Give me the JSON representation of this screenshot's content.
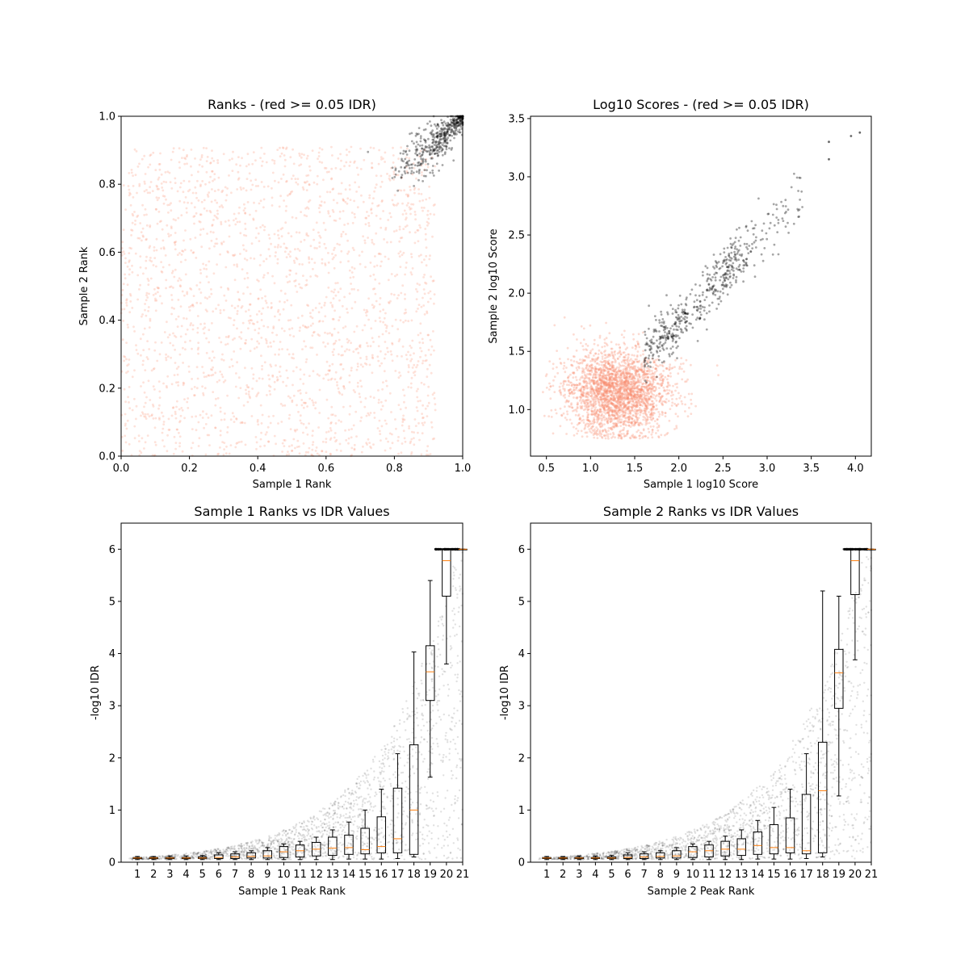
{
  "colors": {
    "background": "#ffffff",
    "low_reproducibility": "#fa8c6c",
    "high_reproducibility": "#000000",
    "box": "#000000",
    "median": "#ff7f0e"
  },
  "chart_data": [
    {
      "id": "ranks",
      "type": "scatter",
      "title": "Ranks - (red >= 0.05 IDR)",
      "xlabel": "Sample 1 Rank",
      "ylabel": "Sample 2 Rank",
      "xlim": [
        0,
        1
      ],
      "ylim": [
        0,
        1
      ],
      "xticks": [
        0.0,
        0.2,
        0.4,
        0.6,
        0.8,
        1.0
      ],
      "yticks": [
        0.0,
        0.2,
        0.4,
        0.6,
        0.8,
        1.0
      ],
      "xtick_labels": [
        "0.0",
        "0.2",
        "0.4",
        "0.6",
        "0.8",
        "1.0"
      ],
      "ytick_labels": [
        "0.0",
        "0.2",
        "0.4",
        "0.6",
        "0.8",
        "1.0"
      ],
      "grid": false,
      "series": [
        {
          "color": "#fa8c6c",
          "marker_alpha": 0.25,
          "approx_count": 4500,
          "distribution": "uniform",
          "x_range": [
            0.0,
            0.92
          ],
          "y_range": [
            0.0,
            0.91
          ]
        },
        {
          "color": "#000000",
          "marker_alpha": 0.35,
          "approx_count": 600,
          "distribution": "diagonal cluster",
          "x_range": [
            0.8,
            1.0
          ],
          "y_range": [
            0.78,
            1.0
          ]
        }
      ]
    },
    {
      "id": "scores",
      "type": "scatter",
      "title": "Log10 Scores - (red >= 0.05 IDR)",
      "xlabel": "Sample 1 log10 Score",
      "ylabel": "Sample 2 log10 Score",
      "xlim": [
        0.32,
        4.18
      ],
      "ylim": [
        0.6,
        3.52
      ],
      "xticks": [
        0.5,
        1.0,
        1.5,
        2.0,
        2.5,
        3.0,
        3.5,
        4.0
      ],
      "yticks": [
        1.0,
        1.5,
        2.0,
        2.5,
        3.0,
        3.5
      ],
      "xtick_labels": [
        "0.5",
        "1.0",
        "1.5",
        "2.0",
        "2.5",
        "3.0",
        "3.5",
        "4.0"
      ],
      "ytick_labels": [
        "1.0",
        "1.5",
        "2.0",
        "2.5",
        "3.0",
        "3.5"
      ],
      "grid": false,
      "series": [
        {
          "color": "#fa8c6c",
          "marker_alpha": 0.3,
          "approx_count": 4500,
          "distribution": "cloud",
          "center": [
            1.3,
            1.15
          ],
          "x_range": [
            0.45,
            2.2
          ],
          "y_range": [
            0.75,
            1.7
          ]
        },
        {
          "color": "#000000",
          "marker_alpha": 0.35,
          "approx_count": 650,
          "distribution": "diagonal band",
          "x_range": [
            1.55,
            4.0
          ],
          "y_range": [
            1.4,
            3.4
          ],
          "extreme_points": [
            [
              3.95,
              3.35
            ],
            [
              4.05,
              3.38
            ],
            [
              3.7,
              3.3
            ],
            [
              3.7,
              3.15
            ]
          ]
        }
      ]
    },
    {
      "id": "s1_idr",
      "type": "box",
      "title": "Sample 1 Ranks vs IDR Values",
      "xlabel": "Sample 1 Peak Rank",
      "ylabel": "-log10 IDR",
      "xlim": [
        0,
        21
      ],
      "ylim": [
        0,
        6.5
      ],
      "xticks": [
        1,
        2,
        3,
        4,
        5,
        6,
        7,
        8,
        9,
        10,
        11,
        12,
        13,
        14,
        15,
        16,
        17,
        18,
        19,
        20,
        21
      ],
      "yticks": [
        0,
        1,
        2,
        3,
        4,
        5,
        6
      ],
      "xtick_labels": [
        "1",
        "2",
        "3",
        "4",
        "5",
        "6",
        "7",
        "8",
        "9",
        "10",
        "11",
        "12",
        "13",
        "14",
        "15",
        "16",
        "17",
        "18",
        "19",
        "20",
        "21"
      ],
      "ytick_labels": [
        "0",
        "1",
        "2",
        "3",
        "4",
        "5",
        "6"
      ],
      "grid": false,
      "boxes": [
        {
          "x": 1,
          "whislo": 0.05,
          "q1": 0.07,
          "med": 0.08,
          "q3": 0.09,
          "whishi": 0.11
        },
        {
          "x": 2,
          "whislo": 0.05,
          "q1": 0.07,
          "med": 0.08,
          "q3": 0.09,
          "whishi": 0.11
        },
        {
          "x": 3,
          "whislo": 0.05,
          "q1": 0.07,
          "med": 0.08,
          "q3": 0.09,
          "whishi": 0.12
        },
        {
          "x": 4,
          "whislo": 0.05,
          "q1": 0.07,
          "med": 0.08,
          "q3": 0.09,
          "whishi": 0.12
        },
        {
          "x": 5,
          "whislo": 0.05,
          "q1": 0.07,
          "med": 0.08,
          "q3": 0.1,
          "whishi": 0.13
        },
        {
          "x": 6,
          "whislo": 0.05,
          "q1": 0.07,
          "med": 0.09,
          "q3": 0.14,
          "whishi": 0.18
        },
        {
          "x": 7,
          "whislo": 0.05,
          "q1": 0.07,
          "med": 0.1,
          "q3": 0.16,
          "whishi": 0.2
        },
        {
          "x": 8,
          "whislo": 0.05,
          "q1": 0.08,
          "med": 0.11,
          "q3": 0.18,
          "whishi": 0.22
        },
        {
          "x": 9,
          "whislo": 0.05,
          "q1": 0.08,
          "med": 0.12,
          "q3": 0.22,
          "whishi": 0.28
        },
        {
          "x": 10,
          "whislo": 0.05,
          "q1": 0.09,
          "med": 0.2,
          "q3": 0.3,
          "whishi": 0.35
        },
        {
          "x": 11,
          "whislo": 0.05,
          "q1": 0.1,
          "med": 0.22,
          "q3": 0.33,
          "whishi": 0.4
        },
        {
          "x": 12,
          "whislo": 0.05,
          "q1": 0.12,
          "med": 0.25,
          "q3": 0.38,
          "whishi": 0.48
        },
        {
          "x": 13,
          "whislo": 0.05,
          "q1": 0.13,
          "med": 0.27,
          "q3": 0.48,
          "whishi": 0.62
        },
        {
          "x": 14,
          "whislo": 0.06,
          "q1": 0.15,
          "med": 0.28,
          "q3": 0.52,
          "whishi": 0.77
        },
        {
          "x": 15,
          "whislo": 0.06,
          "q1": 0.16,
          "med": 0.24,
          "q3": 0.65,
          "whishi": 1.0
        },
        {
          "x": 16,
          "whislo": 0.06,
          "q1": 0.18,
          "med": 0.3,
          "q3": 0.87,
          "whishi": 1.4
        },
        {
          "x": 17,
          "whislo": 0.07,
          "q1": 0.18,
          "med": 0.45,
          "q3": 1.42,
          "whishi": 2.08
        },
        {
          "x": 18,
          "whislo": 0.1,
          "q1": 0.15,
          "med": 1.0,
          "q3": 2.25,
          "whishi": 4.03
        },
        {
          "x": 19,
          "whislo": 1.63,
          "q1": 3.1,
          "med": 3.65,
          "q3": 4.15,
          "whishi": 5.4
        },
        {
          "x": 20,
          "whislo": 3.8,
          "q1": 5.1,
          "med": 5.78,
          "q3": 6.0,
          "whishi": 6.0
        },
        {
          "x": 21,
          "whislo": 6.0,
          "q1": 6.0,
          "med": 6.0,
          "q3": 6.0,
          "whishi": 6.0
        }
      ]
    },
    {
      "id": "s2_idr",
      "type": "box",
      "title": "Sample 2 Ranks vs IDR Values",
      "xlabel": "Sample 2 Peak Rank",
      "ylabel": "-log10 IDR",
      "xlim": [
        0,
        21
      ],
      "ylim": [
        0,
        6.5
      ],
      "xticks": [
        1,
        2,
        3,
        4,
        5,
        6,
        7,
        8,
        9,
        10,
        11,
        12,
        13,
        14,
        15,
        16,
        17,
        18,
        19,
        20,
        21
      ],
      "yticks": [
        0,
        1,
        2,
        3,
        4,
        5,
        6
      ],
      "xtick_labels": [
        "1",
        "2",
        "3",
        "4",
        "5",
        "6",
        "7",
        "8",
        "9",
        "10",
        "11",
        "12",
        "13",
        "14",
        "15",
        "16",
        "17",
        "18",
        "19",
        "20",
        "21"
      ],
      "ytick_labels": [
        "0",
        "1",
        "2",
        "3",
        "4",
        "5",
        "6"
      ],
      "grid": false,
      "boxes": [
        {
          "x": 1,
          "whislo": 0.05,
          "q1": 0.07,
          "med": 0.08,
          "q3": 0.09,
          "whishi": 0.11
        },
        {
          "x": 2,
          "whislo": 0.05,
          "q1": 0.07,
          "med": 0.08,
          "q3": 0.09,
          "whishi": 0.11
        },
        {
          "x": 3,
          "whislo": 0.05,
          "q1": 0.07,
          "med": 0.08,
          "q3": 0.09,
          "whishi": 0.12
        },
        {
          "x": 4,
          "whislo": 0.05,
          "q1": 0.07,
          "med": 0.08,
          "q3": 0.09,
          "whishi": 0.12
        },
        {
          "x": 5,
          "whislo": 0.05,
          "q1": 0.07,
          "med": 0.08,
          "q3": 0.1,
          "whishi": 0.13
        },
        {
          "x": 6,
          "whislo": 0.05,
          "q1": 0.07,
          "med": 0.09,
          "q3": 0.14,
          "whishi": 0.18
        },
        {
          "x": 7,
          "whislo": 0.05,
          "q1": 0.07,
          "med": 0.1,
          "q3": 0.16,
          "whishi": 0.2
        },
        {
          "x": 8,
          "whislo": 0.05,
          "q1": 0.08,
          "med": 0.11,
          "q3": 0.18,
          "whishi": 0.22
        },
        {
          "x": 9,
          "whislo": 0.05,
          "q1": 0.08,
          "med": 0.12,
          "q3": 0.22,
          "whishi": 0.28
        },
        {
          "x": 10,
          "whislo": 0.05,
          "q1": 0.09,
          "med": 0.2,
          "q3": 0.3,
          "whishi": 0.35
        },
        {
          "x": 11,
          "whislo": 0.05,
          "q1": 0.1,
          "med": 0.22,
          "q3": 0.33,
          "whishi": 0.4
        },
        {
          "x": 12,
          "whislo": 0.05,
          "q1": 0.12,
          "med": 0.25,
          "q3": 0.4,
          "whishi": 0.5
        },
        {
          "x": 13,
          "whislo": 0.05,
          "q1": 0.13,
          "med": 0.25,
          "q3": 0.45,
          "whishi": 0.62
        },
        {
          "x": 14,
          "whislo": 0.06,
          "q1": 0.15,
          "med": 0.32,
          "q3": 0.58,
          "whishi": 0.8
        },
        {
          "x": 15,
          "whislo": 0.06,
          "q1": 0.16,
          "med": 0.28,
          "q3": 0.72,
          "whishi": 1.05
        },
        {
          "x": 16,
          "whislo": 0.06,
          "q1": 0.18,
          "med": 0.28,
          "q3": 0.85,
          "whishi": 1.4
        },
        {
          "x": 17,
          "whislo": 0.07,
          "q1": 0.16,
          "med": 0.22,
          "q3": 1.3,
          "whishi": 2.08
        },
        {
          "x": 18,
          "whislo": 0.1,
          "q1": 0.18,
          "med": 1.37,
          "q3": 2.3,
          "whishi": 5.2
        },
        {
          "x": 19,
          "whislo": 1.27,
          "q1": 2.95,
          "med": 3.63,
          "q3": 4.08,
          "whishi": 5.1
        },
        {
          "x": 20,
          "whislo": 3.88,
          "q1": 5.13,
          "med": 5.78,
          "q3": 6.0,
          "whishi": 6.0
        },
        {
          "x": 21,
          "whislo": 6.0,
          "q1": 6.0,
          "med": 6.0,
          "q3": 6.0,
          "whishi": 6.0
        }
      ]
    }
  ]
}
